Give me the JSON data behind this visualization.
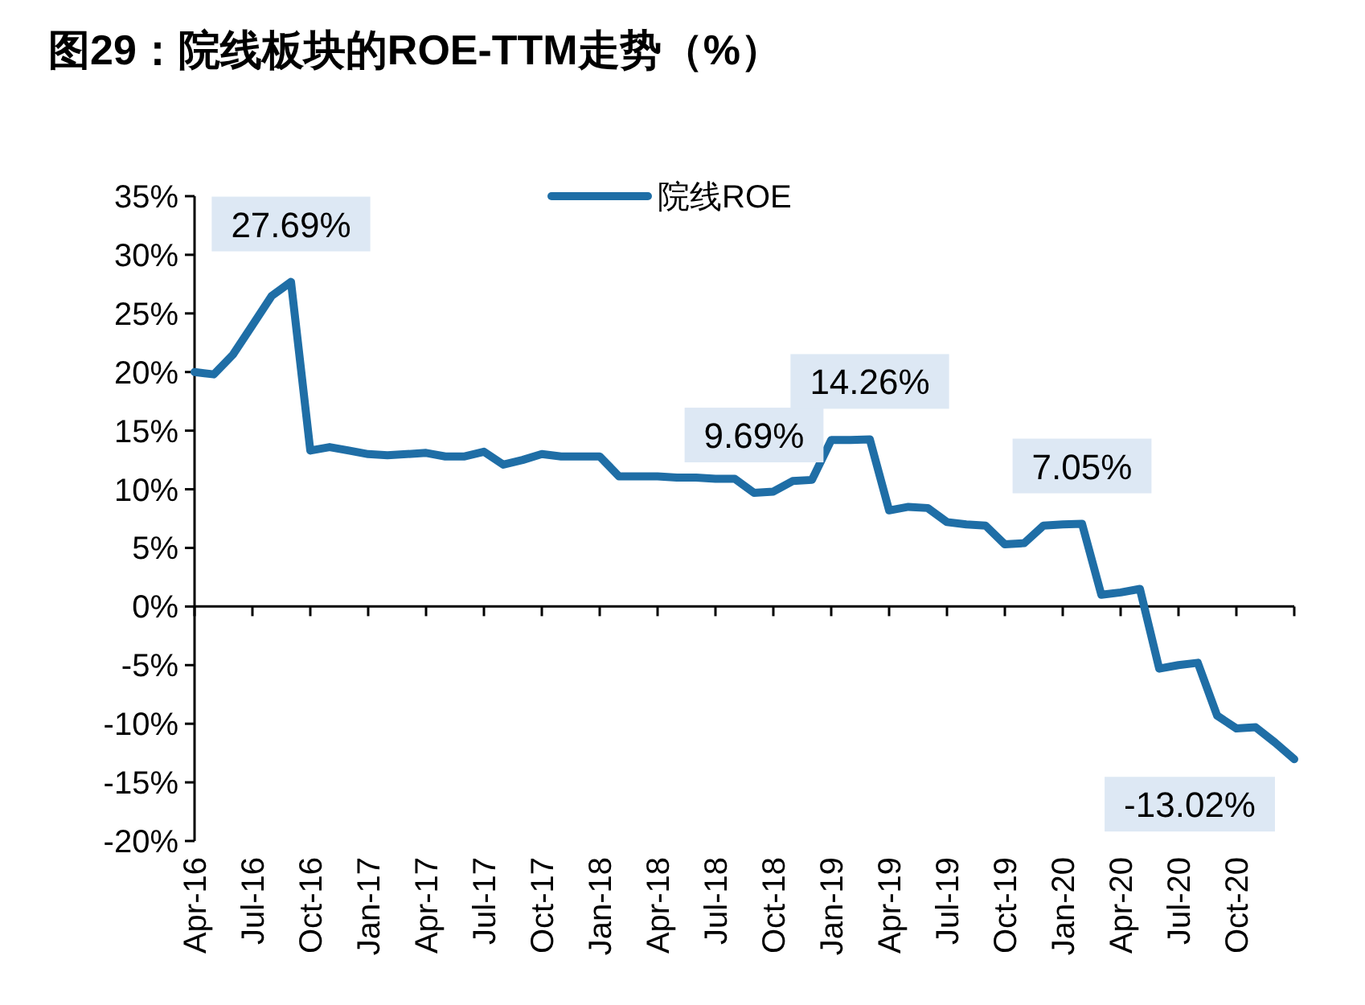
{
  "chart_data": {
    "type": "line",
    "title": "图29：院线板块的ROE-TTM走势（%）",
    "x": [
      "2016-04",
      "2016-05",
      "2016-06",
      "2016-07",
      "2016-08",
      "2016-09",
      "2016-10",
      "2016-11",
      "2016-12",
      "2017-01",
      "2017-02",
      "2017-03",
      "2017-04",
      "2017-05",
      "2017-06",
      "2017-07",
      "2017-08",
      "2017-09",
      "2017-10",
      "2017-11",
      "2017-12",
      "2018-01",
      "2018-02",
      "2018-03",
      "2018-04",
      "2018-05",
      "2018-06",
      "2018-07",
      "2018-08",
      "2018-09",
      "2018-10",
      "2018-11",
      "2018-12",
      "2019-01",
      "2019-02",
      "2019-03",
      "2019-04",
      "2019-05",
      "2019-06",
      "2019-07",
      "2019-08",
      "2019-09",
      "2019-10",
      "2019-11",
      "2019-12",
      "2020-01",
      "2020-02",
      "2020-03",
      "2020-04",
      "2020-05",
      "2020-06",
      "2020-07",
      "2020-08",
      "2020-09",
      "2020-10",
      "2020-11",
      "2020-12",
      "2021-01"
    ],
    "series": [
      {
        "name": "院线ROE",
        "color": "#1f6ea6",
        "values": [
          20.0,
          19.8,
          21.5,
          24.0,
          26.5,
          27.69,
          13.3,
          13.6,
          13.3,
          13.0,
          12.9,
          13.0,
          13.1,
          12.8,
          12.8,
          13.2,
          12.1,
          12.5,
          13.0,
          12.8,
          12.8,
          12.8,
          11.1,
          11.1,
          11.1,
          11.0,
          11.0,
          10.9,
          10.9,
          9.69,
          9.8,
          10.7,
          10.8,
          14.2,
          14.2,
          14.26,
          8.2,
          8.5,
          8.4,
          7.2,
          7.0,
          6.9,
          5.3,
          5.4,
          6.9,
          7.0,
          7.05,
          1.0,
          1.2,
          1.5,
          -5.3,
          -5.0,
          -4.8,
          -9.3,
          -10.4,
          -10.3,
          -11.6,
          -13.02
        ]
      }
    ],
    "xlim": [
      "2016-04",
      "2021-01"
    ],
    "xticks": [
      {
        "value": "2016-04",
        "label": "Apr-16"
      },
      {
        "value": "2016-07",
        "label": "Jul-16"
      },
      {
        "value": "2016-10",
        "label": "Oct-16"
      },
      {
        "value": "2017-01",
        "label": "Jan-17"
      },
      {
        "value": "2017-04",
        "label": "Apr-17"
      },
      {
        "value": "2017-07",
        "label": "Jul-17"
      },
      {
        "value": "2017-10",
        "label": "Oct-17"
      },
      {
        "value": "2018-01",
        "label": "Jan-18"
      },
      {
        "value": "2018-04",
        "label": "Apr-18"
      },
      {
        "value": "2018-07",
        "label": "Jul-18"
      },
      {
        "value": "2018-10",
        "label": "Oct-18"
      },
      {
        "value": "2019-01",
        "label": "Jan-19"
      },
      {
        "value": "2019-04",
        "label": "Apr-19"
      },
      {
        "value": "2019-07",
        "label": "Jul-19"
      },
      {
        "value": "2019-10",
        "label": "Oct-19"
      },
      {
        "value": "2020-01",
        "label": "Jan-20"
      },
      {
        "value": "2020-04",
        "label": "Apr-20"
      },
      {
        "value": "2020-07",
        "label": "Jul-20"
      },
      {
        "value": "2020-10",
        "label": "Oct-20"
      }
    ],
    "ylim": [
      -20,
      35
    ],
    "yticks": [
      {
        "value": -20,
        "label": "-20%"
      },
      {
        "value": -15,
        "label": "-15%"
      },
      {
        "value": -10,
        "label": "-10%"
      },
      {
        "value": -5,
        "label": "-5%"
      },
      {
        "value": 0,
        "label": "0%"
      },
      {
        "value": 5,
        "label": "5%"
      },
      {
        "value": 10,
        "label": "10%"
      },
      {
        "value": 15,
        "label": "15%"
      },
      {
        "value": 20,
        "label": "20%"
      },
      {
        "value": 25,
        "label": "25%"
      },
      {
        "value": 30,
        "label": "30%"
      },
      {
        "value": 35,
        "label": "35%"
      }
    ],
    "annotations": [
      {
        "text": "27.69%",
        "x": "2016-09",
        "y": 27.69
      },
      {
        "text": "9.69%",
        "x": "2018-09",
        "y": 9.69
      },
      {
        "text": "14.26%",
        "x": "2019-03",
        "y": 14.26
      },
      {
        "text": "7.05%",
        "x": "2020-02",
        "y": 7.05
      },
      {
        "text": "-13.02%",
        "x": "2021-01",
        "y": -13.02
      }
    ],
    "legend": "top",
    "marker": "none",
    "line_style": "solid"
  }
}
